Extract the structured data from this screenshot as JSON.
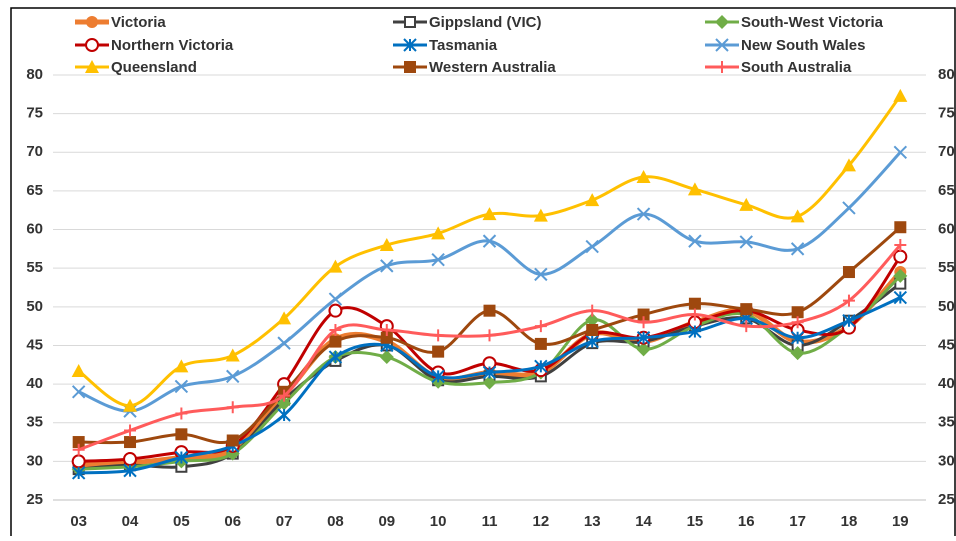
{
  "chart_data": {
    "type": "line",
    "categories": [
      "03",
      "04",
      "05",
      "06",
      "07",
      "08",
      "09",
      "10",
      "11",
      "12",
      "13",
      "14",
      "15",
      "16",
      "17",
      "18",
      "19"
    ],
    "ylim": [
      25,
      80
    ],
    "yticks": [
      25,
      30,
      35,
      40,
      45,
      50,
      55,
      60,
      65,
      70,
      75,
      80
    ],
    "grid": true,
    "smooth": true,
    "series": [
      {
        "name": "Victoria",
        "color": "#ED7D31",
        "marker": "circle",
        "values": [
          29.5,
          29.8,
          30.5,
          31.5,
          38.5,
          45.8,
          45.5,
          40.8,
          41.5,
          41.5,
          46.5,
          45.5,
          48,
          49.5,
          45.5,
          47.5,
          54.5
        ]
      },
      {
        "name": "Gippsland (VIC)",
        "color": "#404040",
        "marker": "open-square",
        "values": [
          29,
          29.5,
          29.3,
          31,
          38,
          43,
          45,
          40.5,
          41,
          41,
          45.3,
          45.5,
          47.5,
          48.5,
          45,
          48.2,
          53
        ]
      },
      {
        "name": "South-West Victoria",
        "color": "#70AD47",
        "marker": "diamond",
        "values": [
          29,
          29.3,
          30,
          31,
          37.5,
          43.5,
          43.5,
          40.3,
          40.2,
          41.5,
          48.3,
          44.5,
          47.5,
          49,
          44,
          47.5,
          54
        ]
      },
      {
        "name": "Northern Victoria",
        "color": "#C00000",
        "marker": "open-circle",
        "values": [
          30,
          30.3,
          31.2,
          32,
          40,
          49.5,
          47.5,
          41.5,
          42.7,
          41.8,
          46.5,
          46,
          48,
          49.5,
          47,
          47.3,
          56.5
        ]
      },
      {
        "name": "Tasmania",
        "color": "#0070C0",
        "marker": "asterisk",
        "values": [
          28.5,
          28.8,
          30.5,
          32,
          36,
          43.5,
          45,
          41,
          41.5,
          42.3,
          45.5,
          46,
          46.8,
          48.5,
          46,
          48.2,
          51.2
        ]
      },
      {
        "name": "New South Wales",
        "color": "#5B9BD5",
        "marker": "x",
        "values": [
          39,
          36.5,
          39.7,
          41,
          45.3,
          51,
          55.3,
          56.1,
          58.5,
          54.2,
          57.8,
          62,
          58.5,
          58.4,
          57.5,
          62.8,
          70
        ]
      },
      {
        "name": "Queensland",
        "color": "#FFC000",
        "marker": "triangle",
        "values": [
          41.7,
          37.2,
          42.3,
          43.7,
          48.5,
          55.2,
          58,
          59.5,
          62,
          61.8,
          63.8,
          66.8,
          65.2,
          63.2,
          61.7,
          68.3,
          77.3
        ]
      },
      {
        "name": "Western Australia",
        "color": "#9E480E",
        "marker": "square",
        "values": [
          32.5,
          32.5,
          33.5,
          32.7,
          39,
          45.5,
          46,
          44.2,
          49.5,
          45.2,
          47,
          49,
          50.4,
          49.7,
          49.3,
          54.5,
          60.3
        ]
      },
      {
        "name": "South Australia",
        "color": "#FF5B5B",
        "marker": "plus",
        "values": [
          31.5,
          34,
          36.2,
          37,
          38.5,
          47,
          47,
          46.3,
          46.3,
          47.5,
          49.5,
          48,
          49,
          47.5,
          48,
          50.8,
          58
        ]
      }
    ]
  }
}
